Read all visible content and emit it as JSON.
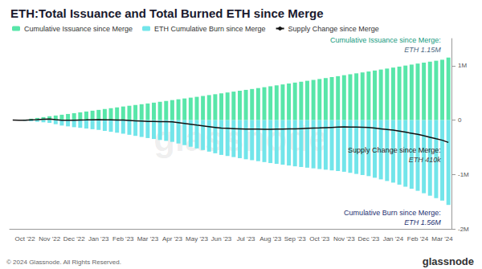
{
  "chart_data": {
    "type": "bar",
    "title": "ETH:Total Issuance and Total Burned ETH since Merge",
    "categories": [
      null,
      null,
      "Oct '22",
      null,
      null,
      null,
      "Nov '22",
      null,
      null,
      null,
      "Dec '22",
      null,
      null,
      null,
      "Jan '23",
      null,
      null,
      null,
      "Feb '23",
      null,
      null,
      null,
      "Mar '23",
      null,
      null,
      null,
      "Apr '23",
      null,
      null,
      null,
      "May '23",
      null,
      null,
      null,
      "Jun '23",
      null,
      null,
      null,
      "Jul '23",
      null,
      null,
      null,
      "Aug '23",
      null,
      null,
      null,
      "Sep '23",
      null,
      null,
      null,
      "Oct '23",
      null,
      null,
      null,
      "Nov '23",
      null,
      null,
      null,
      "Dec '23",
      null,
      null,
      null,
      "Jan '24",
      null,
      null,
      null,
      "Feb '24",
      null,
      null,
      null,
      "Mar '24",
      null
    ],
    "series": [
      {
        "name": "Cumulative Issuance since Merge",
        "type": "bar",
        "color": "#58e6a9",
        "values": [
          0,
          4000,
          10000,
          25000,
          40000,
          55000,
          70000,
          84000,
          99000,
          113000,
          128000,
          143000,
          158000,
          173000,
          188000,
          203000,
          219000,
          234000,
          250000,
          264000,
          278000,
          292000,
          306000,
          321000,
          337000,
          352000,
          368000,
          383000,
          398000,
          413000,
          428000,
          444000,
          460000,
          476000,
          492000,
          508000,
          524000,
          540000,
          556000,
          572000,
          589000,
          605000,
          622000,
          639000,
          656000,
          673000,
          690000,
          706000,
          723000,
          739000,
          756000,
          773000,
          791000,
          808000,
          826000,
          843000,
          860000,
          877000,
          894000,
          912000,
          930000,
          948000,
          966000,
          984000,
          1003000,
          1021000,
          1040000,
          1057000,
          1075000,
          1092000,
          1110000,
          1150000
        ]
      },
      {
        "name": "ETH Cumulative Burn since Merge",
        "type": "bar",
        "color": "#72e5ea",
        "values": [
          0,
          -5000,
          -12000,
          -21000,
          -31000,
          -40000,
          -50000,
          -75000,
          -100000,
          -115000,
          -130000,
          -142000,
          -155000,
          -167000,
          -180000,
          -197000,
          -215000,
          -232000,
          -250000,
          -270000,
          -290000,
          -310000,
          -330000,
          -347000,
          -365000,
          -382000,
          -400000,
          -430000,
          -460000,
          -490000,
          -520000,
          -550000,
          -580000,
          -610000,
          -640000,
          -660000,
          -680000,
          -700000,
          -720000,
          -737000,
          -755000,
          -772000,
          -790000,
          -805000,
          -820000,
          -835000,
          -850000,
          -862000,
          -875000,
          -887000,
          -900000,
          -912000,
          -925000,
          -937000,
          -950000,
          -970000,
          -990000,
          -1010000,
          -1030000,
          -1060000,
          -1090000,
          -1120000,
          -1150000,
          -1187000,
          -1225000,
          -1262000,
          -1300000,
          -1345000,
          -1390000,
          -1435000,
          -1480000,
          -1560000
        ]
      },
      {
        "name": "Supply Change since Merge",
        "type": "line",
        "color": "#111111",
        "values": [
          0,
          -1000,
          -2000,
          4000,
          9000,
          15000,
          20000,
          9000,
          -1000,
          -2000,
          -2000,
          1000,
          3000,
          6000,
          8000,
          6000,
          4000,
          2000,
          0,
          -6000,
          -12000,
          -18000,
          -24000,
          -26000,
          -28000,
          -30000,
          -32000,
          -47000,
          -62000,
          -77000,
          -92000,
          -106000,
          -120000,
          -134000,
          -148000,
          -152000,
          -156000,
          -160000,
          -164000,
          -165000,
          -166000,
          -167000,
          -168000,
          -166000,
          -164000,
          -162000,
          -160000,
          -156000,
          -152000,
          -148000,
          -144000,
          -139000,
          -134000,
          -129000,
          -124000,
          -127000,
          -130000,
          -133000,
          -136000,
          -148000,
          -160000,
          -172000,
          -184000,
          -203000,
          -222000,
          -241000,
          -260000,
          -288000,
          -315000,
          -343000,
          -370000,
          -410000
        ]
      }
    ],
    "annotations": [
      {
        "series": "Cumulative Issuance since Merge",
        "text": [
          "Cumulative Issuance since Merge:",
          "ETH 1.15M"
        ]
      },
      {
        "series": "Supply Change since Merge",
        "text": [
          "Supply Change since Merge:",
          "ETH 410k"
        ]
      },
      {
        "series": "ETH Cumulative Burn since Merge",
        "text": [
          "Cumulative Burn since Merge:",
          "ETH 1.56M"
        ]
      }
    ],
    "ylim": [
      -2000000,
      1500000
    ],
    "yticks": [
      {
        "value": -2000000,
        "label": "-2M"
      },
      {
        "value": -1000000,
        "label": "-1M"
      },
      0,
      {
        "value": 1000000,
        "label": "1M"
      }
    ],
    "grid": false,
    "legend": "top-left",
    "watermark": "glassnode",
    "source": "© 2024 Glassnode. All Rights Reserved."
  }
}
